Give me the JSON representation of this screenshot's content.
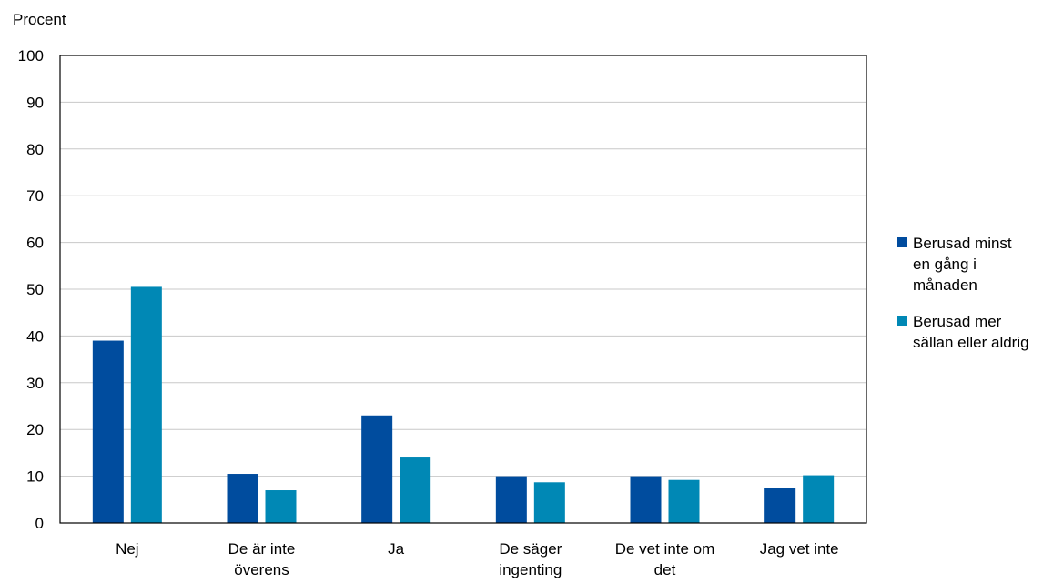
{
  "chart_data": {
    "type": "bar",
    "ylabel": "Procent",
    "ylim": [
      0,
      100
    ],
    "yticks": [
      0,
      10,
      20,
      30,
      40,
      50,
      60,
      70,
      80,
      90,
      100
    ],
    "grid": true,
    "legend_position": "right",
    "categories": [
      "Nej",
      "De är inte överens",
      "Ja",
      "De säger ingenting",
      "De vet inte om det",
      "Jag vet inte"
    ],
    "category_lines": [
      [
        "Nej"
      ],
      [
        "De är inte",
        "överens"
      ],
      [
        "Ja"
      ],
      [
        "De säger",
        "ingenting"
      ],
      [
        "De vet inte om",
        "det"
      ],
      [
        "Jag vet inte"
      ]
    ],
    "series": [
      {
        "name": "Berusad minst en gång i månaden",
        "name_lines": [
          "Berusad minst",
          "en gång i",
          "månaden"
        ],
        "color": "#004c9e",
        "values": [
          39,
          10.5,
          23,
          10,
          10,
          7.5
        ]
      },
      {
        "name": "Berusad mer sällan eller aldrig",
        "name_lines": [
          "Berusad mer",
          "sällan eller aldrig"
        ],
        "color": "#0088b5",
        "values": [
          50.5,
          7,
          14,
          8.7,
          9.2,
          10.2
        ]
      }
    ]
  }
}
